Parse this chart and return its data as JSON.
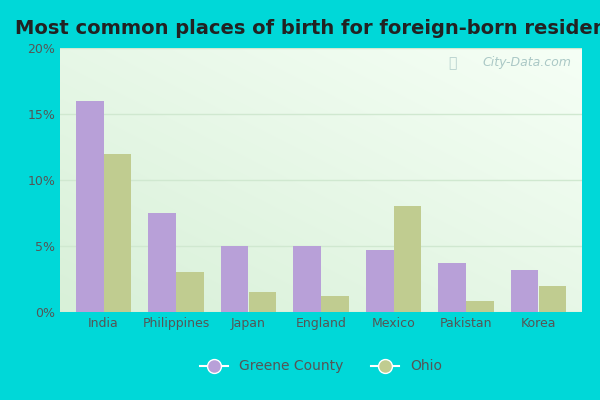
{
  "title": "Most common places of birth for foreign-born residents",
  "categories": [
    "India",
    "Philippines",
    "Japan",
    "England",
    "Mexico",
    "Pakistan",
    "Korea"
  ],
  "greene_county": [
    16.0,
    7.5,
    5.0,
    5.0,
    4.7,
    3.7,
    3.2
  ],
  "ohio": [
    12.0,
    3.0,
    1.5,
    1.2,
    8.0,
    0.8,
    2.0
  ],
  "greene_color": "#b8a0d8",
  "ohio_color": "#c0cc90",
  "bg_outer": "#00d8d8",
  "ylim": [
    0,
    20
  ],
  "yticks": [
    0,
    5,
    10,
    15,
    20
  ],
  "ytick_labels": [
    "0%",
    "5%",
    "10%",
    "15%",
    "20%"
  ],
  "legend_labels": [
    "Greene County",
    "Ohio"
  ],
  "title_fontsize": 14,
  "watermark": "City-Data.com",
  "grid_color": "#d0e8d0",
  "tick_color": "#555555"
}
